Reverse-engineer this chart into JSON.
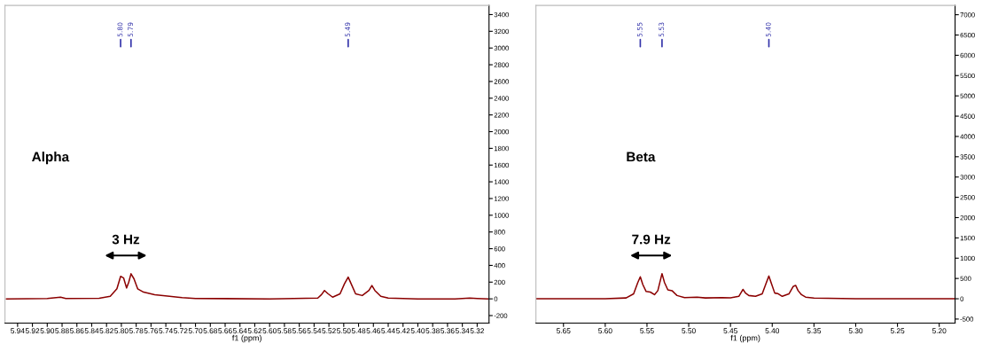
{
  "chart_data": [
    {
      "type": "line",
      "xlabel": "f1 (ppm)",
      "xlim": [
        5.957,
        5.304
      ],
      "ylim": [
        -290,
        3510
      ],
      "xticks": [
        5.94,
        5.92,
        {
          "value": 5.9,
          "label": "5.90"
        },
        5.88,
        5.86,
        5.84,
        5.82,
        {
          "value": 5.8,
          "label": "5.80"
        },
        5.78,
        5.76,
        5.74,
        5.72,
        {
          "value": 5.7,
          "label": "5.70"
        },
        5.68,
        5.66,
        5.64,
        5.62,
        {
          "value": 5.6,
          "label": "5.60"
        },
        5.58,
        5.56,
        5.54,
        5.52,
        {
          "value": 5.5,
          "label": "5.50"
        },
        5.48,
        5.46,
        5.44,
        5.42,
        {
          "value": 5.4,
          "label": "5.40"
        },
        5.38,
        5.36,
        5.34,
        5.32
      ],
      "yticks": [
        -200,
        0,
        200,
        400,
        600,
        800,
        1000,
        1200,
        1400,
        1600,
        1800,
        2000,
        2200,
        2400,
        2600,
        2800,
        3000,
        3200,
        3400
      ],
      "grid": false,
      "legend": false,
      "marker": "none",
      "line_style": "solid",
      "series": [
        {
          "color": "#8b0000",
          "x": [
            5.955,
            5.9,
            5.882,
            5.875,
            5.83,
            5.815,
            5.806,
            5.801,
            5.797,
            5.793,
            5.79,
            5.787,
            5.783,
            5.778,
            5.77,
            5.755,
            5.735,
            5.724,
            5.718,
            5.7,
            5.6,
            5.535,
            5.53,
            5.526,
            5.521,
            5.515,
            5.505,
            5.499,
            5.494,
            5.49,
            5.484,
            5.475,
            5.466,
            5.462,
            5.458,
            5.45,
            5.44,
            5.4,
            5.35,
            5.33,
            5.32,
            5.305
          ],
          "values": [
            0,
            5,
            20,
            5,
            8,
            30,
            120,
            270,
            250,
            130,
            200,
            300,
            240,
            120,
            80,
            50,
            30,
            20,
            15,
            5,
            0,
            10,
            50,
            100,
            60,
            20,
            60,
            180,
            260,
            180,
            60,
            40,
            100,
            160,
            100,
            30,
            10,
            0,
            0,
            10,
            5,
            0
          ]
        }
      ],
      "annotations": [
        {
          "text": "5.80",
          "x": 5.801
        },
        {
          "text": "5.79",
          "x": 5.787
        },
        {
          "text": "5.49",
          "x": 5.494
        },
        "Alpha",
        "3 Hz"
      ]
    },
    {
      "type": "line",
      "xlabel": "f1 (ppm)",
      "xlim": [
        5.683,
        5.181
      ],
      "ylim": [
        -600,
        7230
      ],
      "xticks": [
        5.65,
        {
          "value": 5.6,
          "label": "5.60"
        },
        5.55,
        {
          "value": 5.5,
          "label": "5.50"
        },
        5.45,
        {
          "value": 5.4,
          "label": "5.40"
        },
        5.35,
        {
          "value": 5.3,
          "label": "5.30"
        },
        5.25,
        {
          "value": 5.2,
          "label": "5.20"
        }
      ],
      "yticks": [
        -500,
        0,
        500,
        1000,
        1500,
        2000,
        2500,
        3000,
        3500,
        4000,
        4500,
        5000,
        5500,
        6000,
        6500,
        7000
      ],
      "grid": false,
      "legend": false,
      "marker": "none",
      "line_style": "solid",
      "series": [
        {
          "color": "#8b0000",
          "x": [
            5.683,
            5.6,
            5.575,
            5.566,
            5.561,
            5.558,
            5.555,
            5.551,
            5.546,
            5.541,
            5.537,
            5.534,
            5.532,
            5.529,
            5.525,
            5.52,
            5.514,
            5.505,
            5.49,
            5.48,
            5.46,
            5.45,
            5.44,
            5.437,
            5.435,
            5.432,
            5.428,
            5.42,
            5.412,
            5.407,
            5.404,
            5.401,
            5.397,
            5.393,
            5.388,
            5.38,
            5.375,
            5.372,
            5.369,
            5.365,
            5.36,
            5.35,
            5.3,
            5.181
          ],
          "values": [
            0,
            0,
            20,
            120,
            400,
            540,
            350,
            180,
            165,
            100,
            200,
            450,
            620,
            400,
            220,
            200,
            80,
            30,
            40,
            20,
            30,
            25,
            60,
            160,
            230,
            140,
            80,
            60,
            120,
            400,
            560,
            380,
            140,
            125,
            60,
            120,
            300,
            330,
            200,
            100,
            40,
            15,
            0,
            0
          ]
        }
      ],
      "annotations": [
        {
          "text": "5.55",
          "x": 5.558
        },
        {
          "text": "5.53",
          "x": 5.532
        },
        {
          "text": "5.40",
          "x": 5.404
        },
        "Beta",
        "7.9 Hz"
      ]
    }
  ]
}
